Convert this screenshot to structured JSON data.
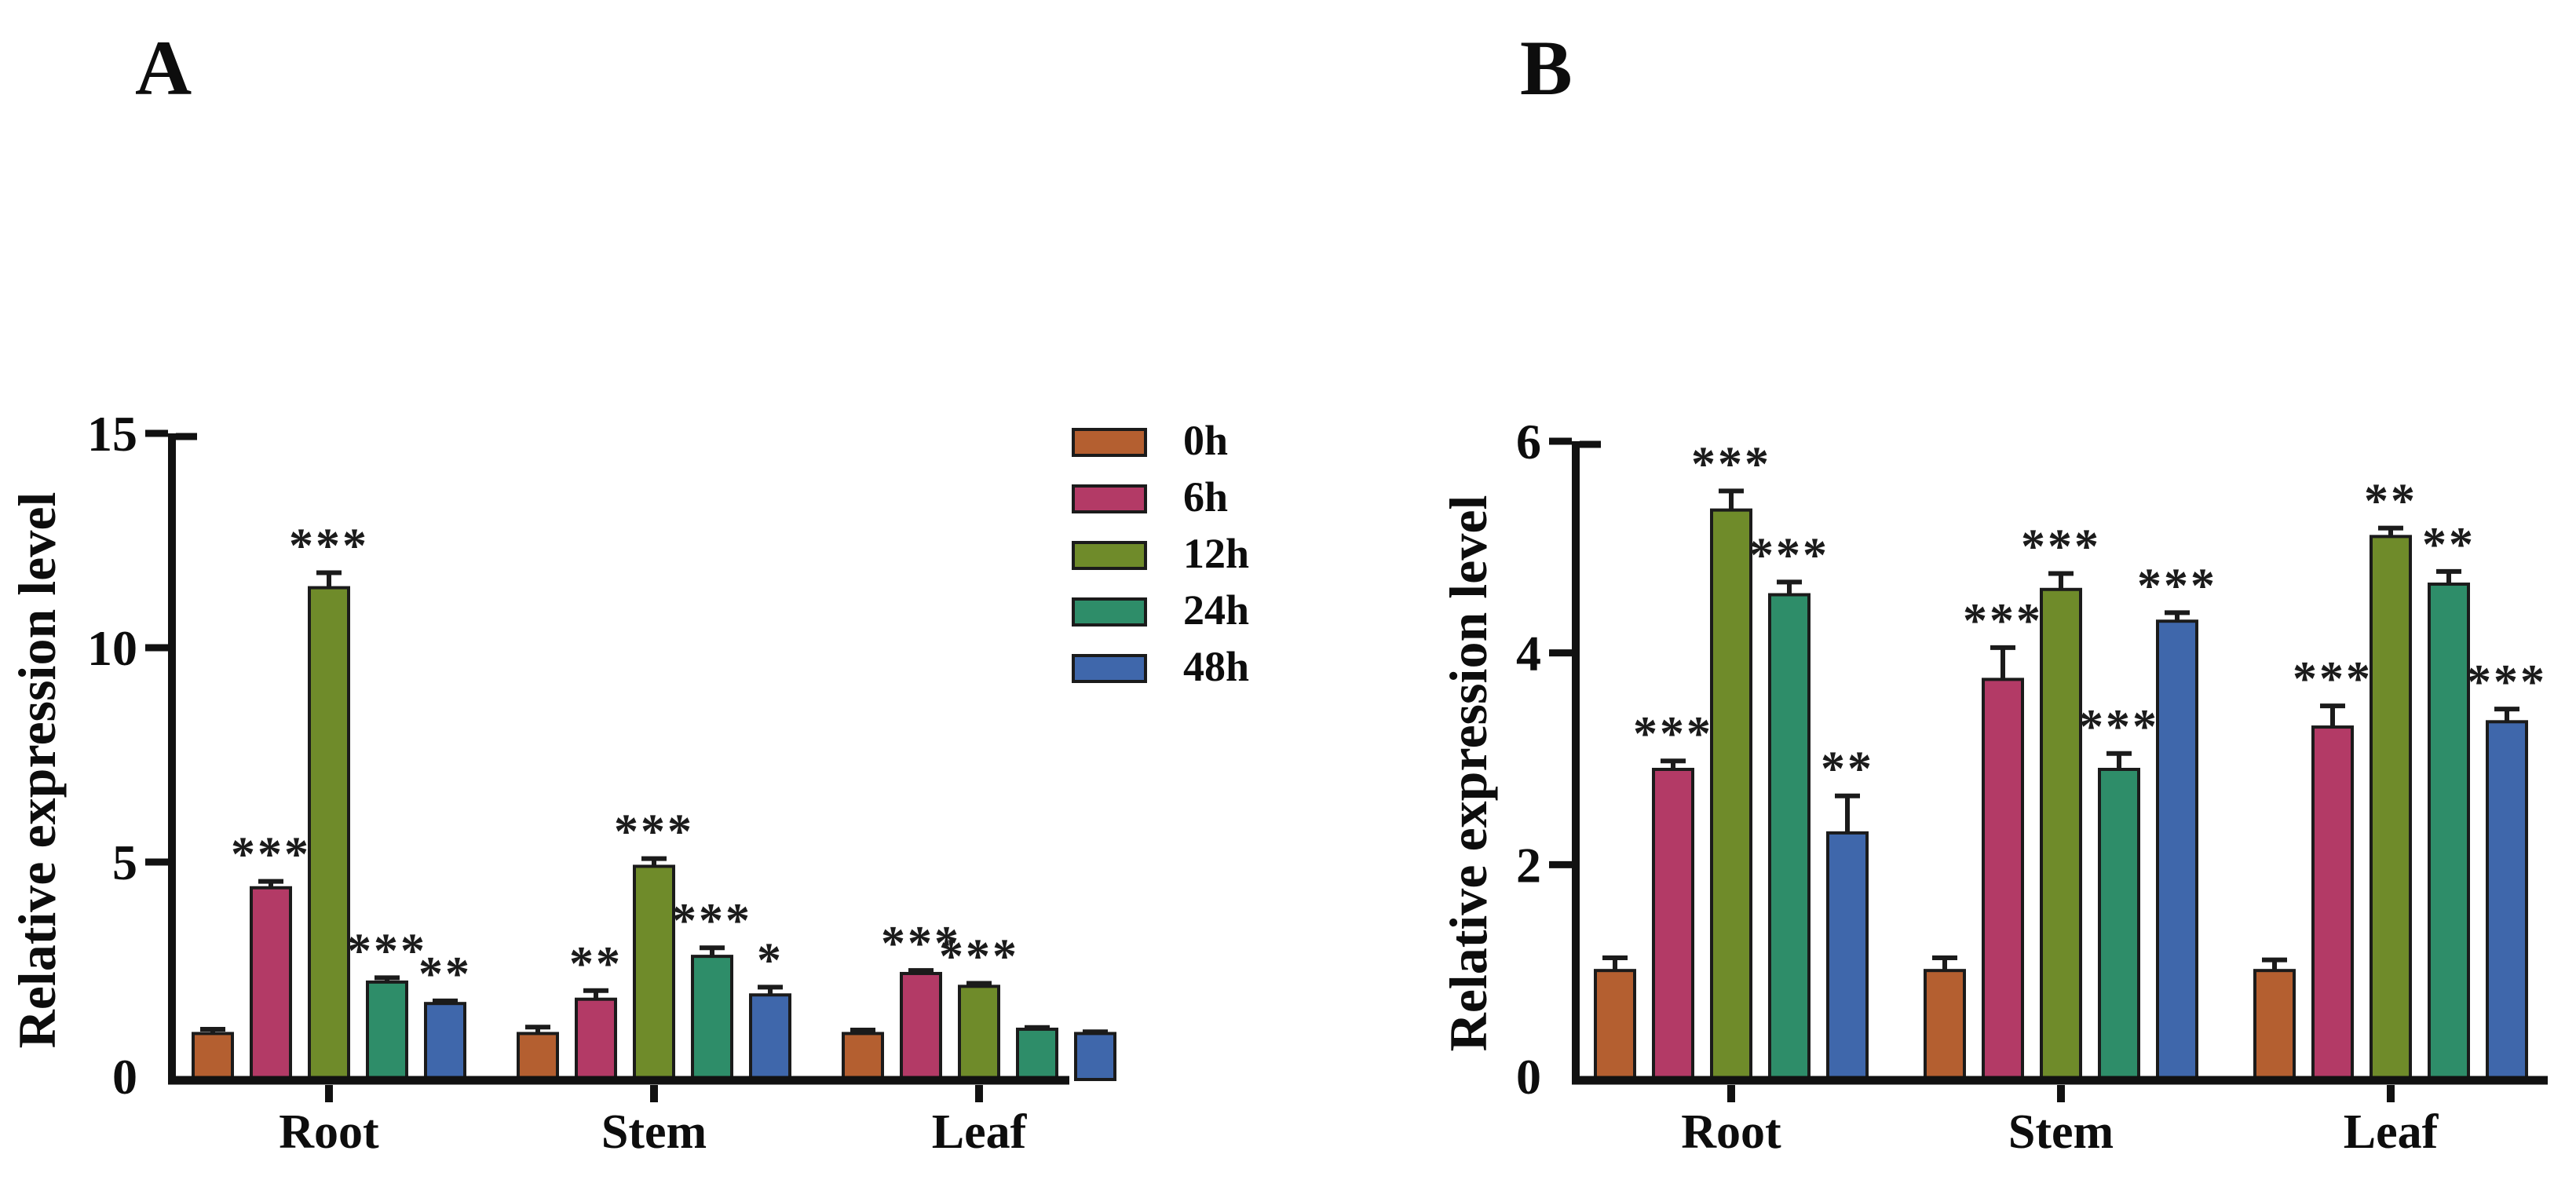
{
  "chart_data": [
    {
      "type": "bar",
      "panel_label": "A",
      "ylabel": "Relative expression level",
      "xlabel": "",
      "categories": [
        "Root",
        "Stem",
        "Leaf"
      ],
      "ylim": [
        0,
        15
      ],
      "yticks": [
        0,
        5,
        10,
        15
      ],
      "grid": false,
      "legend_position": "top-right-outside",
      "legend": [
        "0h",
        "6h",
        "12h",
        "24h",
        "48h"
      ],
      "series": [
        {
          "name": "0h",
          "color": "#b45f30",
          "values": [
            1.0,
            1.0,
            1.0
          ],
          "errors": [
            0.1,
            0.15,
            0.08
          ],
          "significance": [
            "",
            "",
            ""
          ]
        },
        {
          "name": "6h",
          "color": "#b33a66",
          "values": [
            4.4,
            1.8,
            2.4
          ],
          "errors": [
            0.15,
            0.2,
            0.07
          ],
          "significance": [
            "***",
            "**",
            "***"
          ]
        },
        {
          "name": "12h",
          "color": "#6f8b2a",
          "values": [
            11.4,
            4.9,
            2.1
          ],
          "errors": [
            0.35,
            0.18,
            0.07
          ],
          "significance": [
            "***",
            "***",
            "***"
          ]
        },
        {
          "name": "24h",
          "color": "#2e8d69",
          "values": [
            2.2,
            2.8,
            1.1
          ],
          "errors": [
            0.1,
            0.2,
            0.04
          ],
          "significance": [
            "***",
            "***",
            ""
          ]
        },
        {
          "name": "48h",
          "color": "#3f67ab",
          "values": [
            1.7,
            1.9,
            1.0
          ],
          "errors": [
            0.06,
            0.18,
            0.04
          ],
          "significance": [
            "**",
            "*",
            ""
          ]
        }
      ]
    },
    {
      "type": "bar",
      "panel_label": "B",
      "ylabel": "Relative expression level",
      "xlabel": "",
      "categories": [
        "Root",
        "Stem",
        "Leaf"
      ],
      "ylim": [
        0,
        6
      ],
      "yticks": [
        0,
        2,
        4,
        6
      ],
      "grid": false,
      "legend_position": "none",
      "series": [
        {
          "name": "0h",
          "color": "#b45f30",
          "values": [
            1.0,
            1.0,
            1.0
          ],
          "errors": [
            0.12,
            0.12,
            0.1
          ],
          "significance": [
            "",
            "",
            ""
          ]
        },
        {
          "name": "6h",
          "color": "#b33a66",
          "values": [
            2.9,
            3.75,
            3.3
          ],
          "errors": [
            0.08,
            0.3,
            0.2
          ],
          "significance": [
            "***",
            "***",
            "***"
          ]
        },
        {
          "name": "12h",
          "color": "#6f8b2a",
          "values": [
            5.35,
            4.6,
            5.1
          ],
          "errors": [
            0.18,
            0.15,
            0.08
          ],
          "significance": [
            "***",
            "***",
            "**"
          ]
        },
        {
          "name": "24h",
          "color": "#2e8d69",
          "values": [
            4.55,
            2.9,
            4.65
          ],
          "errors": [
            0.12,
            0.15,
            0.12
          ],
          "significance": [
            "***",
            "***",
            "**"
          ]
        },
        {
          "name": "48h",
          "color": "#3f67ab",
          "values": [
            2.3,
            4.3,
            3.35
          ],
          "errors": [
            0.35,
            0.08,
            0.12
          ],
          "significance": [
            "**",
            "***",
            "***"
          ]
        }
      ]
    }
  ],
  "style_colors": {
    "bar_outline": "#1b1b1b",
    "axis": "#111111",
    "text": "#0d0d0d",
    "background": "#ffffff"
  }
}
